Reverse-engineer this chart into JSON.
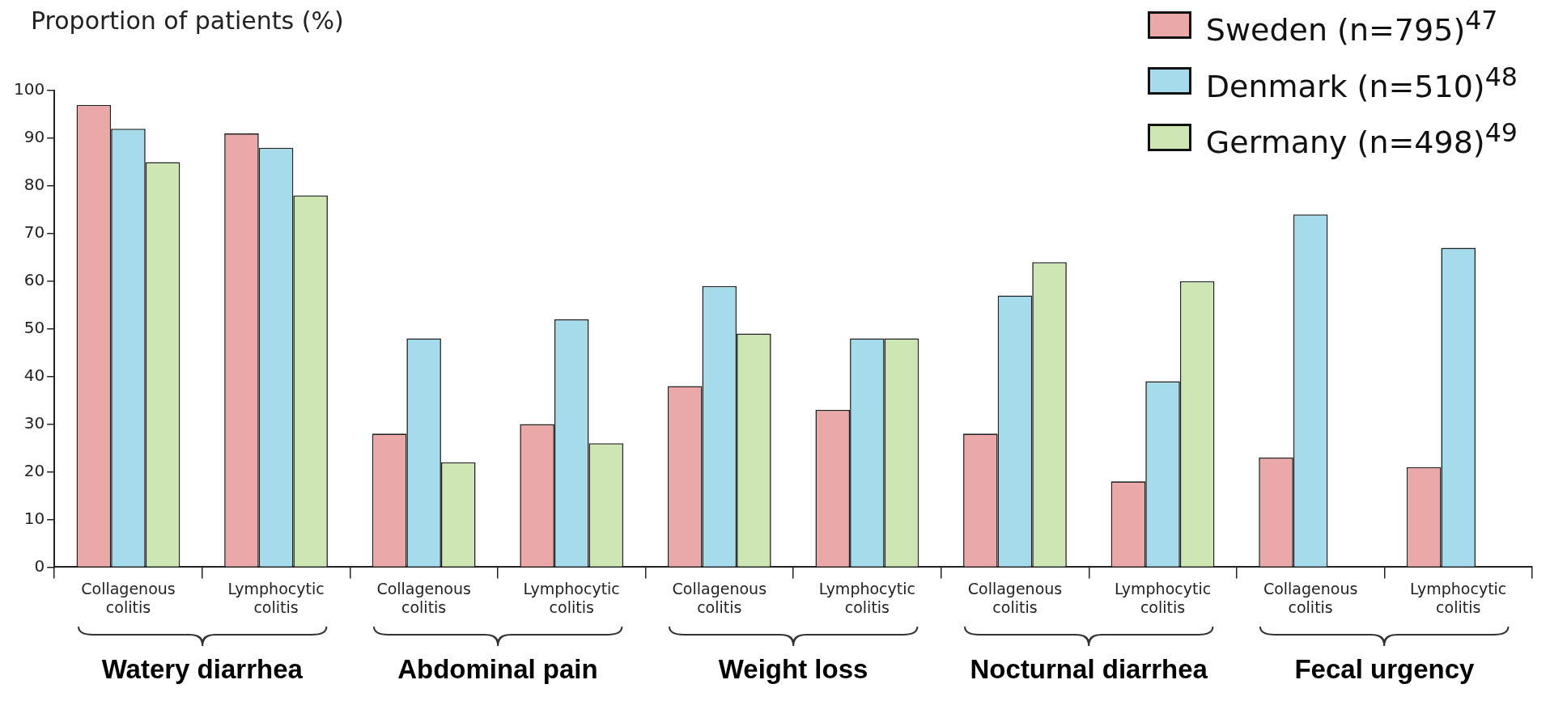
{
  "chart_data": {
    "type": "bar",
    "ylabel": "Proportion of patients (%)",
    "categories": [
      "Collagenous colitis",
      "Lymphocytic colitis",
      "Collagenous colitis",
      "Lymphocytic colitis",
      "Collagenous colitis",
      "Lymphocytic colitis",
      "Collagenous colitis",
      "Lymphocytic colitis",
      "Collagenous colitis",
      "Lymphocytic colitis"
    ],
    "series": [
      {
        "name": "Sweden (n=795)$^{47}$",
        "color": "#eba8a8",
        "values": [
          97,
          91,
          28,
          30,
          38,
          33,
          28,
          18,
          23,
          21
        ]
      },
      {
        "name": "Denmark (n=510)$^{48}$",
        "color": "#a6dbeb",
        "values": [
          92,
          88,
          48,
          52,
          59,
          48,
          57,
          39,
          74,
          67
        ]
      },
      {
        "name": "Germany (n=498)$^{49}$",
        "color": "#cde6b3",
        "values": [
          85,
          78,
          22,
          26,
          49,
          48,
          64,
          60,
          null,
          null
        ]
      }
    ],
    "ylim": [
      0,
      100
    ],
    "yticks": [
      0,
      10,
      20,
      30,
      40,
      50,
      60,
      70,
      80,
      90,
      100
    ],
    "grid": false,
    "legend": "top right",
    "annotations": [
      "Watery diarrhea",
      "Abdominal pain",
      "Weight loss",
      "Nocturnal diarrhea",
      "Fecal urgency"
    ]
  }
}
